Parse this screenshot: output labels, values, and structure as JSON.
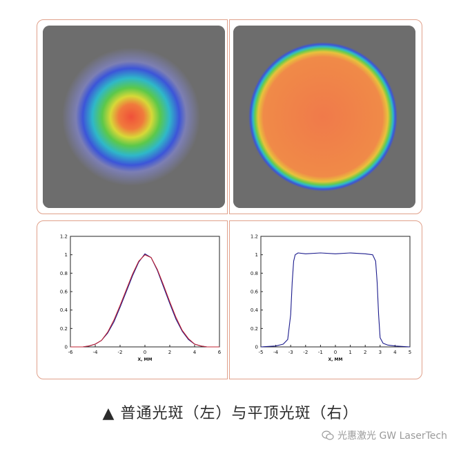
{
  "caption": "▲ 普通光斑（左）与平顶光斑（右）",
  "watermark": "光惠激光 GW LaserTech",
  "colors": {
    "frame_border": "#e0a08a",
    "spot_background": "#6d6d6d",
    "trace_blue": "#1a1a8c",
    "trace_red": "#c02030"
  },
  "images": [
    {
      "name": "ordinary-beam-spot",
      "shape": "gaussian"
    },
    {
      "name": "flat-top-beam-spot",
      "shape": "flat-top"
    }
  ],
  "chart_data": [
    {
      "type": "line",
      "title": "",
      "xlabel": "X, MM",
      "ylabel": "",
      "xlim": [
        -6,
        6
      ],
      "ylim": [
        0,
        1.2
      ],
      "xticks": [
        "-6",
        "-4",
        "-2",
        "0",
        "2",
        "4",
        "6"
      ],
      "yticks": [
        "0",
        "0.2",
        "0.4",
        "0.6",
        "0.8",
        "1",
        "1.2"
      ],
      "series": [
        {
          "color": "#1a1a8c",
          "x": [
            -6,
            -5,
            -4.5,
            -4,
            -3.5,
            -3,
            -2.5,
            -2,
            -1.5,
            -1,
            -0.5,
            0,
            0.5,
            1,
            1.5,
            2,
            2.5,
            3,
            3.5,
            4,
            4.5,
            5,
            6
          ],
          "y": [
            0.0,
            0.0,
            0.01,
            0.03,
            0.07,
            0.15,
            0.27,
            0.43,
            0.6,
            0.77,
            0.92,
            1.01,
            0.97,
            0.83,
            0.65,
            0.47,
            0.3,
            0.17,
            0.08,
            0.03,
            0.01,
            0.0,
            0.0
          ]
        },
        {
          "color": "#c02030",
          "x": [
            -6,
            -5,
            -4.5,
            -4,
            -3.5,
            -3,
            -2.5,
            -2,
            -1.5,
            -1,
            -0.5,
            0,
            0.5,
            1,
            1.5,
            2,
            2.5,
            3,
            3.5,
            4,
            4.5,
            5,
            6
          ],
          "y": [
            0.0,
            0.0,
            0.01,
            0.03,
            0.07,
            0.16,
            0.29,
            0.45,
            0.62,
            0.79,
            0.93,
            1.0,
            0.97,
            0.84,
            0.67,
            0.49,
            0.32,
            0.18,
            0.09,
            0.03,
            0.01,
            0.0,
            0.0
          ]
        }
      ]
    },
    {
      "type": "line",
      "title": "",
      "xlabel": "X, MM",
      "ylabel": "",
      "xlim": [
        -5,
        5
      ],
      "ylim": [
        0,
        1.2
      ],
      "xticks": [
        "-5",
        "-4",
        "-3",
        "-2",
        "-1",
        "0",
        "1",
        "2",
        "3",
        "4",
        "5"
      ],
      "yticks": [
        "0",
        "0.2",
        "0.4",
        "0.6",
        "0.8",
        "1",
        "1.2"
      ],
      "series": [
        {
          "color": "#1a1a8c",
          "x": [
            -5,
            -4,
            -3.5,
            -3.2,
            -3.0,
            -2.9,
            -2.8,
            -2.7,
            -2.5,
            -2,
            -1,
            0,
            1,
            2,
            2.5,
            2.7,
            2.8,
            2.9,
            3.0,
            3.2,
            3.5,
            4,
            5
          ],
          "y": [
            0.0,
            0.01,
            0.03,
            0.08,
            0.35,
            0.7,
            0.93,
            1.0,
            1.02,
            1.01,
            1.02,
            1.01,
            1.02,
            1.01,
            1.0,
            0.93,
            0.7,
            0.35,
            0.1,
            0.04,
            0.02,
            0.01,
            0.0
          ]
        }
      ]
    }
  ]
}
